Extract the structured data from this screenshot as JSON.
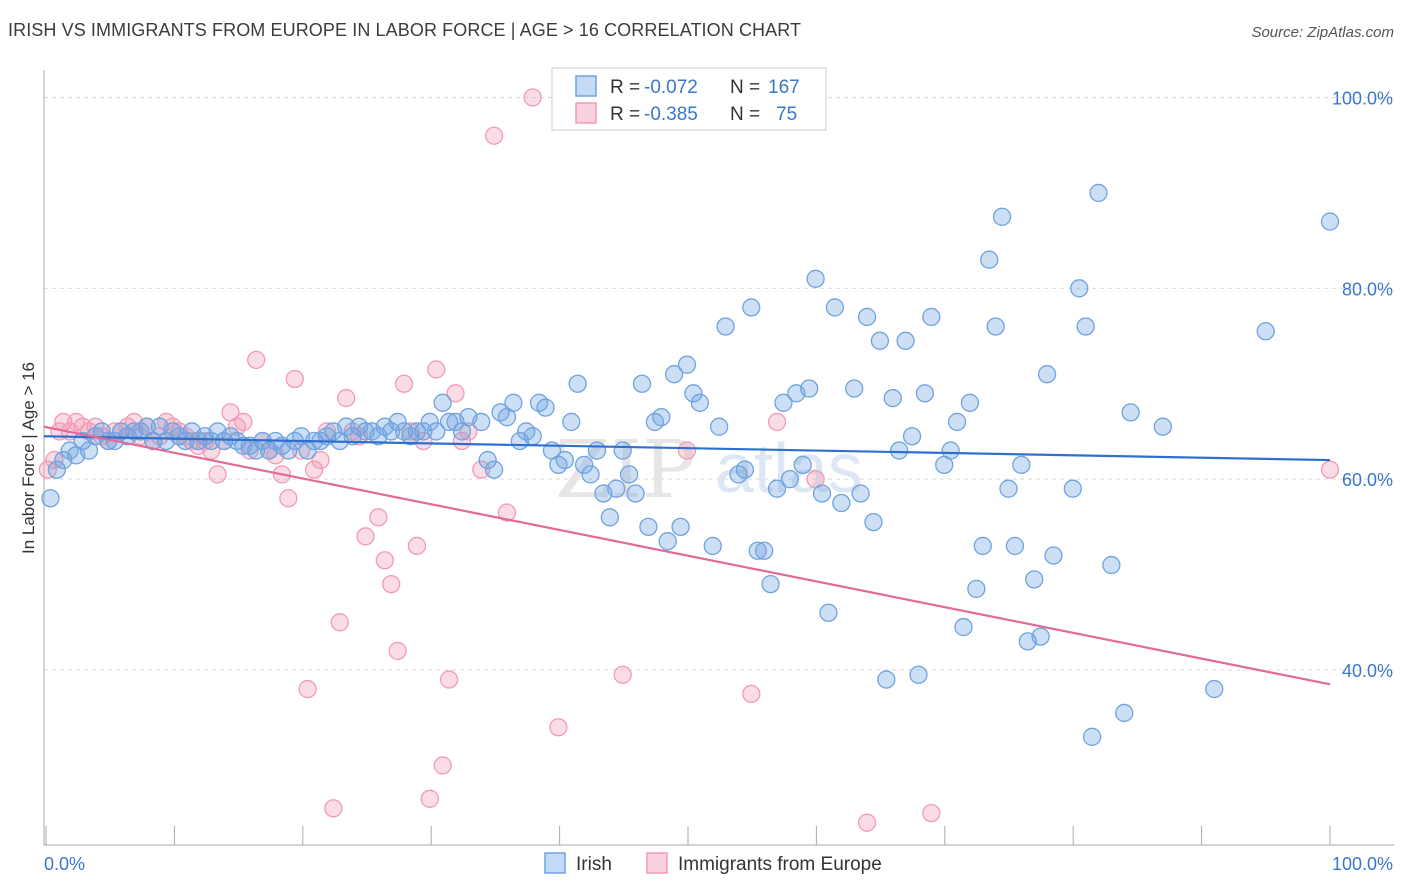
{
  "title": "IRISH VS IMMIGRANTS FROM EUROPE IN LABOR FORCE | AGE > 16 CORRELATION CHART",
  "source": "Source: ZipAtlas.com",
  "colors": {
    "irish": "#6fa3e0",
    "irish_line": "#2f6fce",
    "europe": "#f29bb5",
    "europe_line": "#e46a96",
    "grid": "#d9d9d9",
    "axis_text": "#3a77c8"
  },
  "legend": {
    "rows": [
      {
        "r_label": "R = ",
        "r_value": "-0.072",
        "n_label": "N = ",
        "n_value": "167"
      },
      {
        "r_label": "R = ",
        "r_value": "-0.385",
        "n_label": "N = ",
        "n_value": "75"
      }
    ]
  },
  "bottom_legend": [
    "Irish",
    "Immigrants from Europe"
  ],
  "chart_data": {
    "type": "scatter",
    "xlabel": "",
    "ylabel": "In Labor Force | Age > 16",
    "xlim": [
      0,
      100
    ],
    "ylim": [
      20,
      100
    ],
    "x_tick_labels": [
      "0.0%",
      "100.0%"
    ],
    "y_ticks": [
      40,
      60,
      80,
      100
    ],
    "y_tick_labels": [
      "40.0%",
      "60.0%",
      "80.0%",
      "100.0%"
    ],
    "grid": true,
    "legend_position": "top-center",
    "series": [
      {
        "name": "Irish",
        "r": -0.072,
        "n": 167,
        "trend": [
          [
            0,
            64.5
          ],
          [
            100,
            62.0
          ]
        ],
        "points": [
          [
            0.5,
            58
          ],
          [
            1.0,
            61
          ],
          [
            1.5,
            62
          ],
          [
            2,
            63
          ],
          [
            2.5,
            62.5
          ],
          [
            3,
            64
          ],
          [
            3.5,
            63
          ],
          [
            4,
            64.5
          ],
          [
            4.5,
            65
          ],
          [
            5,
            64
          ],
          [
            5.5,
            64
          ],
          [
            6,
            65
          ],
          [
            6.5,
            64.5
          ],
          [
            7,
            65
          ],
          [
            7.5,
            65
          ],
          [
            8,
            65.5
          ],
          [
            8.5,
            64
          ],
          [
            9,
            65.5
          ],
          [
            9.5,
            64
          ],
          [
            10,
            65
          ],
          [
            10.5,
            64.5
          ],
          [
            11,
            64
          ],
          [
            11.5,
            65
          ],
          [
            12,
            64
          ],
          [
            12.5,
            64.5
          ],
          [
            13,
            64
          ],
          [
            13.5,
            65
          ],
          [
            14,
            64
          ],
          [
            14.5,
            64.5
          ],
          [
            15,
            64
          ],
          [
            15.5,
            63.5
          ],
          [
            16,
            63.5
          ],
          [
            16.5,
            63
          ],
          [
            17,
            64
          ],
          [
            17.5,
            63
          ],
          [
            18,
            64
          ],
          [
            18.5,
            63.5
          ],
          [
            19,
            63
          ],
          [
            19.5,
            64
          ],
          [
            20,
            64.5
          ],
          [
            20.5,
            63
          ],
          [
            21,
            64
          ],
          [
            21.5,
            64
          ],
          [
            22,
            64.5
          ],
          [
            22.5,
            65
          ],
          [
            23,
            64
          ],
          [
            23.5,
            65.5
          ],
          [
            24,
            64.5
          ],
          [
            24.5,
            65.5
          ],
          [
            25,
            65
          ],
          [
            25.5,
            65
          ],
          [
            26,
            64.5
          ],
          [
            26.5,
            65.5
          ],
          [
            27,
            65
          ],
          [
            27.5,
            66
          ],
          [
            28,
            65
          ],
          [
            28.5,
            64.5
          ],
          [
            29,
            65
          ],
          [
            29.5,
            65
          ],
          [
            30,
            66
          ],
          [
            30.5,
            65
          ],
          [
            31,
            68
          ],
          [
            31.5,
            66
          ],
          [
            32,
            66
          ],
          [
            32.5,
            65
          ],
          [
            33,
            66.5
          ],
          [
            34,
            66
          ],
          [
            34.5,
            62
          ],
          [
            35,
            61
          ],
          [
            35.5,
            67
          ],
          [
            36,
            66.5
          ],
          [
            36.5,
            68
          ],
          [
            37,
            64
          ],
          [
            37.5,
            65
          ],
          [
            38,
            64.5
          ],
          [
            38.5,
            68
          ],
          [
            39,
            67.5
          ],
          [
            39.5,
            63
          ],
          [
            40,
            61.5
          ],
          [
            40.5,
            62
          ],
          [
            41,
            66
          ],
          [
            41.5,
            70
          ],
          [
            42,
            61.5
          ],
          [
            42.5,
            60.5
          ],
          [
            43,
            63
          ],
          [
            43.5,
            58.5
          ],
          [
            44,
            56
          ],
          [
            44.5,
            59
          ],
          [
            45,
            63
          ],
          [
            45.5,
            60.5
          ],
          [
            46,
            58.5
          ],
          [
            46.5,
            70
          ],
          [
            47,
            55
          ],
          [
            47.5,
            66
          ],
          [
            48,
            66.5
          ],
          [
            48.5,
            53.5
          ],
          [
            49,
            71
          ],
          [
            49.5,
            55
          ],
          [
            50,
            72
          ],
          [
            50.5,
            69
          ],
          [
            51,
            68
          ],
          [
            52,
            53
          ],
          [
            52.5,
            65.5
          ],
          [
            53,
            76
          ],
          [
            54,
            60.5
          ],
          [
            54.5,
            61
          ],
          [
            55,
            78
          ],
          [
            55.5,
            52.5
          ],
          [
            56,
            52.5
          ],
          [
            56.5,
            49
          ],
          [
            57,
            59
          ],
          [
            57.5,
            68
          ],
          [
            58,
            60
          ],
          [
            58.5,
            69
          ],
          [
            59,
            61.5
          ],
          [
            59.5,
            69.5
          ],
          [
            60,
            81
          ],
          [
            60.5,
            58.5
          ],
          [
            61,
            46
          ],
          [
            61.5,
            78
          ],
          [
            62,
            57.5
          ],
          [
            63,
            69.5
          ],
          [
            63.5,
            58.5
          ],
          [
            64,
            77
          ],
          [
            64.5,
            55.5
          ],
          [
            65,
            74.5
          ],
          [
            65.5,
            39
          ],
          [
            66,
            68.5
          ],
          [
            66.5,
            63
          ],
          [
            67,
            74.5
          ],
          [
            67.5,
            64.5
          ],
          [
            68,
            39.5
          ],
          [
            68.5,
            69
          ],
          [
            69,
            77
          ],
          [
            70,
            61.5
          ],
          [
            70.5,
            63
          ],
          [
            71,
            66
          ],
          [
            71.5,
            44.5
          ],
          [
            72,
            68
          ],
          [
            72.5,
            48.5
          ],
          [
            73,
            53
          ],
          [
            73.5,
            83
          ],
          [
            74,
            76
          ],
          [
            74.5,
            87.5
          ],
          [
            75,
            59
          ],
          [
            75.5,
            53
          ],
          [
            76,
            61.5
          ],
          [
            76.5,
            43
          ],
          [
            77,
            49.5
          ],
          [
            77.5,
            43.5
          ],
          [
            78,
            71
          ],
          [
            78.5,
            52
          ],
          [
            80,
            59
          ],
          [
            80.5,
            80
          ],
          [
            81,
            76
          ],
          [
            81.5,
            33
          ],
          [
            82,
            90
          ],
          [
            83,
            51
          ],
          [
            84,
            35.5
          ],
          [
            84.5,
            67
          ],
          [
            87,
            65.5
          ],
          [
            91,
            38
          ],
          [
            95,
            75.5
          ],
          [
            100,
            87
          ]
        ]
      },
      {
        "name": "Immigrants from Europe",
        "r": -0.385,
        "n": 75,
        "trend": [
          [
            0,
            65.5
          ],
          [
            100,
            38.5
          ]
        ],
        "points": [
          [
            0.3,
            61
          ],
          [
            0.8,
            62
          ],
          [
            1.2,
            65
          ],
          [
            1.5,
            66
          ],
          [
            2,
            65
          ],
          [
            2.5,
            66
          ],
          [
            3,
            65.5
          ],
          [
            3.5,
            65
          ],
          [
            4,
            65.5
          ],
          [
            4.5,
            64.5
          ],
          [
            5,
            64
          ],
          [
            5.5,
            65
          ],
          [
            6,
            65
          ],
          [
            6.5,
            65.5
          ],
          [
            7,
            66
          ],
          [
            7.5,
            64.5
          ],
          [
            8,
            65.5
          ],
          [
            8.5,
            64
          ],
          [
            9,
            64.5
          ],
          [
            9.5,
            66
          ],
          [
            10,
            65.5
          ],
          [
            10.5,
            65
          ],
          [
            11,
            64.5
          ],
          [
            11.5,
            64
          ],
          [
            12,
            63.5
          ],
          [
            12.5,
            64
          ],
          [
            13,
            63
          ],
          [
            13.5,
            60.5
          ],
          [
            14,
            64
          ],
          [
            14.5,
            67
          ],
          [
            15,
            65.5
          ],
          [
            15.5,
            66
          ],
          [
            16,
            63
          ],
          [
            16.5,
            72.5
          ],
          [
            17,
            64
          ],
          [
            17.5,
            63
          ],
          [
            18,
            62.5
          ],
          [
            18.5,
            60.5
          ],
          [
            19,
            58
          ],
          [
            19.5,
            70.5
          ],
          [
            20,
            63
          ],
          [
            20.5,
            38
          ],
          [
            21,
            61
          ],
          [
            21.5,
            62
          ],
          [
            22,
            65
          ],
          [
            22.5,
            25.5
          ],
          [
            23,
            45
          ],
          [
            23.5,
            68.5
          ],
          [
            24,
            65
          ],
          [
            24.5,
            64.5
          ],
          [
            25,
            54
          ],
          [
            26,
            56
          ],
          [
            26.5,
            51.5
          ],
          [
            27,
            49
          ],
          [
            27.5,
            42
          ],
          [
            28,
            70
          ],
          [
            28.5,
            65
          ],
          [
            29,
            53
          ],
          [
            29.5,
            64
          ],
          [
            30,
            26.5
          ],
          [
            30.5,
            71.5
          ],
          [
            31,
            30
          ],
          [
            31.5,
            39
          ],
          [
            32,
            69
          ],
          [
            32.5,
            64
          ],
          [
            33,
            65
          ],
          [
            34,
            61
          ],
          [
            35,
            96
          ],
          [
            36,
            56.5
          ],
          [
            38,
            100
          ],
          [
            40,
            34
          ],
          [
            45,
            39.5
          ],
          [
            50,
            63
          ],
          [
            55,
            37.5
          ],
          [
            57,
            66
          ],
          [
            60,
            60
          ],
          [
            64,
            24
          ],
          [
            69,
            25
          ],
          [
            100,
            61
          ]
        ]
      }
    ]
  }
}
